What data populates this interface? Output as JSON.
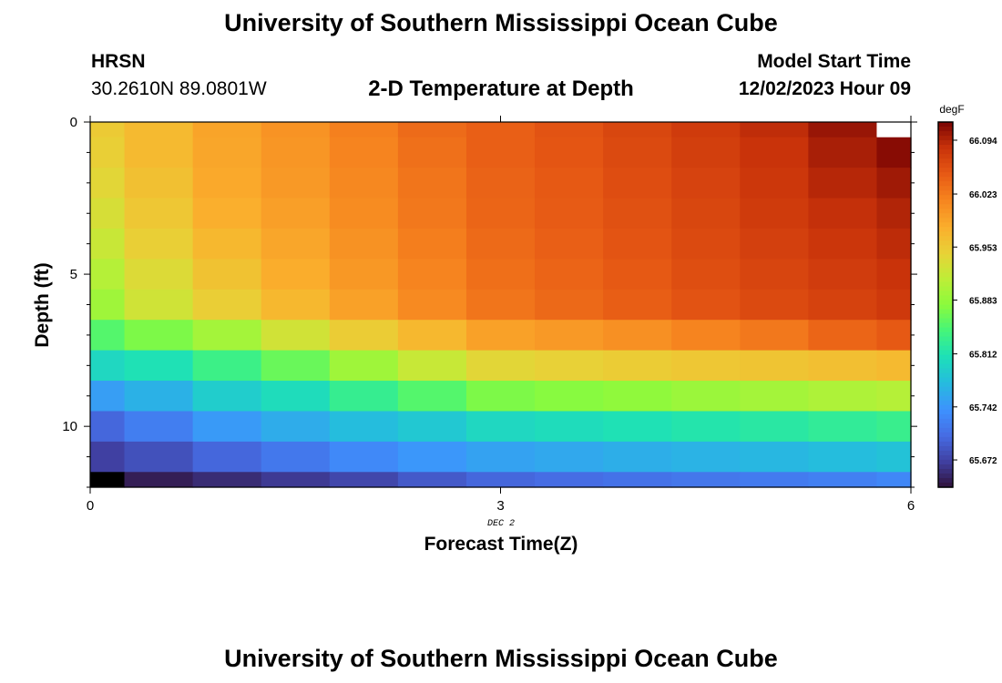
{
  "header": {
    "title": "University of Southern Mississippi Ocean Cube",
    "station": "HRSN",
    "coords": "30.2610N  89.0801W",
    "subtitle": "2-D Temperature at Depth",
    "model_start_label": "Model Start Time",
    "model_start_value": "12/02/2023 Hour 09",
    "date_marker": "DEC 2",
    "footer_title": "University of Southern Mississippi Ocean Cube"
  },
  "chart_data": {
    "type": "heatmap",
    "xlabel": "Forecast Time(Z)",
    "ylabel": "Depth (ft)",
    "xlim": [
      0,
      6
    ],
    "ylim": [
      0,
      12
    ],
    "y_inverted": true,
    "x_ticks": [
      0,
      3,
      6
    ],
    "y_ticks": [
      0,
      5,
      10
    ],
    "x": [
      0,
      0.5,
      1,
      1.5,
      2,
      2.5,
      3,
      3.5,
      4,
      4.5,
      5,
      5.5,
      6
    ],
    "y": [
      0,
      1,
      2,
      3,
      4,
      5,
      6,
      7,
      8,
      9,
      10,
      11,
      12
    ],
    "colorbar": {
      "label": "degF",
      "ticks": [
        "66.094",
        "66.023",
        "65.953",
        "65.883",
        "65.812",
        "65.742",
        "65.672"
      ],
      "min": 65.636,
      "max": 66.118
    },
    "missing_color": "#ffffff",
    "values": [
      [
        65.952,
        65.968,
        65.988,
        66.002,
        66.018,
        66.035,
        66.045,
        66.055,
        66.066,
        66.076,
        66.088,
        66.105,
        null
      ],
      [
        65.947,
        65.968,
        65.986,
        66.0,
        66.015,
        66.031,
        66.045,
        66.053,
        66.063,
        66.073,
        66.083,
        66.098,
        66.112
      ],
      [
        65.94,
        65.962,
        65.983,
        65.997,
        66.012,
        66.027,
        66.042,
        66.05,
        66.06,
        66.069,
        66.08,
        66.092,
        66.102
      ],
      [
        65.93,
        65.955,
        65.978,
        65.992,
        66.008,
        66.025,
        66.04,
        66.048,
        66.057,
        66.066,
        66.076,
        66.086,
        66.094
      ],
      [
        65.919,
        65.947,
        65.97,
        65.986,
        66.003,
        66.02,
        66.036,
        66.045,
        66.054,
        66.063,
        66.072,
        66.081,
        66.089
      ],
      [
        65.905,
        65.935,
        65.96,
        65.98,
        65.998,
        66.015,
        66.032,
        66.041,
        66.05,
        66.059,
        66.067,
        66.075,
        66.083
      ],
      [
        65.89,
        65.924,
        65.948,
        65.97,
        65.99,
        66.01,
        66.027,
        66.037,
        66.046,
        66.055,
        66.063,
        66.07,
        66.078
      ],
      [
        65.85,
        65.87,
        65.893,
        65.925,
        65.95,
        65.97,
        65.99,
        65.997,
        66.005,
        66.015,
        66.025,
        66.04,
        66.05
      ],
      [
        65.8,
        65.81,
        65.835,
        65.86,
        65.89,
        65.918,
        65.94,
        65.945,
        65.95,
        65.955,
        65.958,
        65.963,
        65.968
      ],
      [
        65.748,
        65.765,
        65.79,
        65.805,
        65.83,
        65.85,
        65.87,
        65.875,
        65.88,
        65.887,
        65.893,
        65.9,
        65.905
      ],
      [
        65.7,
        65.72,
        65.745,
        65.76,
        65.775,
        65.785,
        65.8,
        65.805,
        65.81,
        65.815,
        65.82,
        65.826,
        65.832
      ],
      [
        65.67,
        65.683,
        65.7,
        65.715,
        65.73,
        65.742,
        65.752,
        65.757,
        65.762,
        65.766,
        65.77,
        65.775,
        65.78
      ],
      [
        65.63,
        65.645,
        65.655,
        65.665,
        65.675,
        65.69,
        65.7,
        65.705,
        65.71,
        65.714,
        65.718,
        65.722,
        65.728
      ]
    ]
  }
}
